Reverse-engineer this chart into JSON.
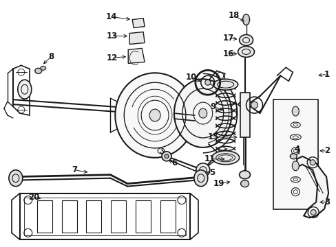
{
  "background_color": "#ffffff",
  "fig_width": 4.89,
  "fig_height": 3.6,
  "dpi": 100,
  "line_color": "#1a1a1a",
  "label_fontsize": 8.5
}
